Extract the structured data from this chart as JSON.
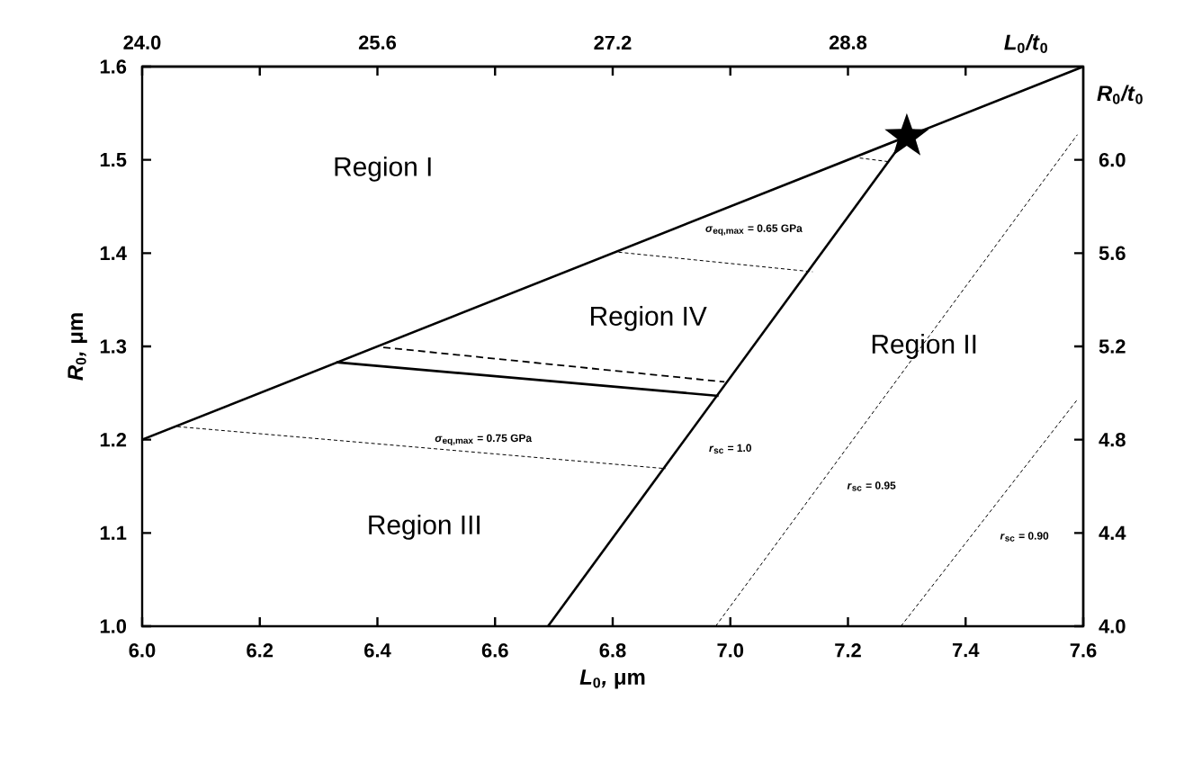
{
  "chart_data": {
    "type": "line",
    "xlabel": "*L*$_{0}$*,* μm",
    "ylabel": "*R*$_{0}$*,* μm",
    "x2label": "*L*$_{0}$*/t*$_{0}$",
    "y2label": "*R*$_{0}$*/t*$_{0}$",
    "xlim": [
      6.0,
      7.6
    ],
    "ylim": [
      1.0,
      1.6
    ],
    "x2lim": [
      24.0,
      30.4
    ],
    "y2lim": [
      4.0,
      6.4
    ],
    "xticks": [
      {
        "value": 6.0,
        "label": "6.0"
      },
      6.2,
      6.4,
      6.6,
      6.8,
      {
        "value": 7.0,
        "label": "7.0"
      },
      7.2,
      7.4,
      7.6
    ],
    "yticks": [
      {
        "value": 1.0,
        "label": "1.0"
      },
      1.1,
      1.2,
      1.3,
      1.4,
      1.5,
      1.6
    ],
    "x2ticks": [
      {
        "value": 24.0,
        "label": "24.0"
      },
      {
        "value": 24.8,
        "label": null
      },
      25.6,
      {
        "value": 26.4,
        "label": null
      },
      27.2,
      {
        "value": 28.0,
        "label": null
      },
      28.8,
      {
        "value": 29.6,
        "label": null
      }
    ],
    "y2ticks": [
      {
        "value": 4.0,
        "label": "4.0"
      },
      4.4,
      4.8,
      5.2,
      5.6,
      {
        "value": 6.0,
        "label": "6.0"
      }
    ],
    "series": [
      {
        "color": "#000000",
        "line_style": "solid",
        "x": [
          6.0,
          7.6
        ],
        "values": [
          1.2,
          1.6
        ]
      },
      {
        "color": "#000000",
        "line_style": "solid",
        "x": [
          6.69,
          7.3
        ],
        "values": [
          1.0,
          1.525
        ]
      },
      {
        "color": "#000000",
        "line_style": "solid",
        "x": [
          6.33,
          6.98
        ],
        "values": [
          1.283,
          1.247
        ]
      },
      {
        "color": "#000000",
        "line_style": "dashed",
        "x": [
          6.41,
          6.99
        ],
        "values": [
          1.299,
          1.262
        ]
      },
      {
        "color": "#000000",
        "line_style": "dotted",
        "x": [
          6.81,
          7.14
        ],
        "values": [
          1.401,
          1.38
        ]
      },
      {
        "color": "#000000",
        "line_style": "dotted",
        "x": [
          6.06,
          6.89
        ],
        "values": [
          1.214,
          1.169
        ]
      },
      {
        "color": "#000000",
        "line_style": "dotted",
        "x": [
          7.22,
          7.27
        ],
        "values": [
          1.502,
          1.498
        ]
      },
      {
        "color": "#000000",
        "line_style": "dotted",
        "x": [
          6.975,
          7.59
        ],
        "values": [
          1.0,
          1.527
        ]
      },
      {
        "color": "#000000",
        "line_style": "dotted",
        "x": [
          7.29,
          7.59
        ],
        "values": [
          1.0,
          1.243
        ]
      },
      {
        "type": "scatter",
        "marker": "star",
        "color": "#000000",
        "x": [
          7.3
        ],
        "values": [
          1.525
        ]
      }
    ],
    "annotations": [
      "Region I",
      "Region IV",
      "Region II",
      "Region III",
      "*σ*$_{eq,max}$ = 0.65 GPa",
      "*σ*$_{eq,max}$ = 0.75 GPa",
      "*r*$_{sc}$ = 1.0",
      "*r*$_{sc}$ = 0.95",
      "*r*$_{sc}$ = 0.90"
    ]
  }
}
